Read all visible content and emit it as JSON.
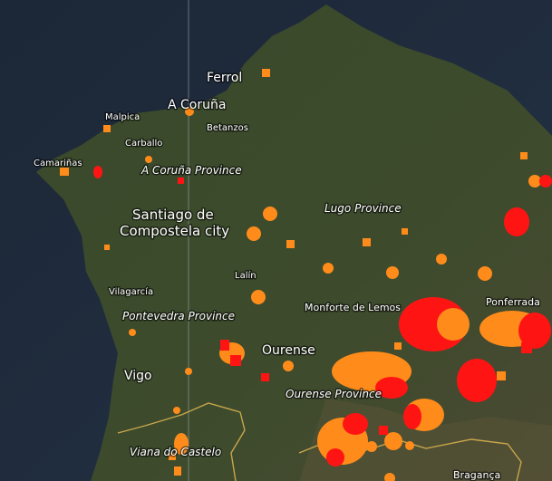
{
  "labels": {
    "ferrol": "Ferrol",
    "a_coruna": "A Coruña",
    "malpica": "Malpica",
    "betanzos": "Betanzos",
    "carballo": "Carballo",
    "camarinas": "Camariñas",
    "a_coruna_province": "A Coruña Province",
    "santiago": [
      "Santiago de",
      "Compostela city"
    ],
    "lugo_province": "Lugo Province",
    "lalin": "Lalín",
    "vilagarcia": "Vilagarcía",
    "pontevedra_province": "Pontevedra Province",
    "monforte": "Monforte de Lemos",
    "ponferrada": "Ponferrada",
    "ourense": "Ourense",
    "vigo": "Vigo",
    "ourense_province": "Ourense Province",
    "viana": "Viana do Castelo",
    "braganca": "Bragança"
  }
}
